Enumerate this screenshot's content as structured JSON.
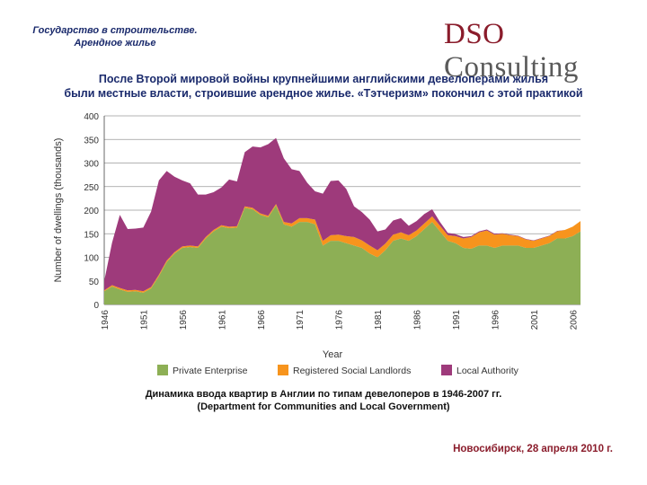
{
  "header": {
    "title_line1": "Государство в строительстве.",
    "title_line2": "Арендное жилье",
    "logo_dso": "DSO",
    "logo_consulting": "Consulting"
  },
  "subtitle": {
    "line1": "После Второй мировой войны крупнейшими английскими девелоперами жилья",
    "line2": "были местные власти, строившие арендное жилье. «Тэтчеризм» покончил с этой практикой"
  },
  "caption": {
    "line1": "Динамика ввода квартир в  Англии по типам девелоперов в 1946-2007 гг.",
    "line2": "(Department for Communities and Local Government)"
  },
  "footer": {
    "text": "Новосибирск, 28 апреля 2010 г."
  },
  "colors": {
    "private": "#8daf55",
    "social": "#f7941d",
    "local": "#9e3a7b"
  },
  "chart_data": {
    "type": "area",
    "stacked": true,
    "xlabel": "Year",
    "ylabel": "Number of dwellings (thousands)",
    "ylim": [
      0,
      400
    ],
    "yticks": [
      0,
      50,
      100,
      150,
      200,
      250,
      300,
      350,
      400
    ],
    "xlim": [
      1946,
      2007
    ],
    "xticks": [
      1946,
      1951,
      1956,
      1961,
      1966,
      1971,
      1976,
      1981,
      1986,
      1991,
      1996,
      2001,
      2006
    ],
    "grid": true,
    "legend_position": "bottom",
    "series": [
      {
        "name": "Private Enterprise",
        "color": "#8daf55",
        "x": [
          1946,
          1947,
          1948,
          1949,
          1950,
          1951,
          1952,
          1953,
          1954,
          1955,
          1956,
          1957,
          1958,
          1959,
          1960,
          1961,
          1962,
          1963,
          1964,
          1965,
          1966,
          1967,
          1968,
          1969,
          1970,
          1971,
          1972,
          1973,
          1974,
          1975,
          1976,
          1977,
          1978,
          1979,
          1980,
          1981,
          1982,
          1983,
          1984,
          1985,
          1986,
          1987,
          1988,
          1989,
          1990,
          1991,
          1992,
          1993,
          1994,
          1995,
          1996,
          1997,
          1998,
          1999,
          2000,
          2001,
          2002,
          2003,
          2004,
          2005,
          2006,
          2007
        ],
        "values": [
          28,
          38,
          32,
          27,
          28,
          25,
          34,
          60,
          90,
          108,
          120,
          122,
          120,
          140,
          155,
          165,
          162,
          163,
          205,
          202,
          190,
          185,
          210,
          170,
          165,
          175,
          175,
          170,
          125,
          135,
          135,
          130,
          125,
          120,
          108,
          100,
          115,
          135,
          140,
          135,
          145,
          160,
          175,
          155,
          135,
          130,
          120,
          118,
          125,
          125,
          120,
          125,
          125,
          125,
          120,
          120,
          125,
          130,
          140,
          140,
          145,
          155
        ]
      },
      {
        "name": "Registered Social Landlords",
        "color": "#f7941d",
        "x": [
          1946,
          1947,
          1948,
          1949,
          1950,
          1951,
          1952,
          1953,
          1954,
          1955,
          1956,
          1957,
          1958,
          1959,
          1960,
          1961,
          1962,
          1963,
          1964,
          1965,
          1966,
          1967,
          1968,
          1969,
          1970,
          1971,
          1972,
          1973,
          1974,
          1975,
          1976,
          1977,
          1978,
          1979,
          1980,
          1981,
          1982,
          1983,
          1984,
          1985,
          1986,
          1987,
          1988,
          1989,
          1990,
          1991,
          1992,
          1993,
          1994,
          1995,
          1996,
          1997,
          1998,
          1999,
          2000,
          2001,
          2002,
          2003,
          2004,
          2005,
          2006,
          2007
        ],
        "values": [
          2,
          3,
          3,
          3,
          3,
          3,
          3,
          3,
          3,
          3,
          3,
          3,
          3,
          3,
          3,
          3,
          3,
          3,
          3,
          3,
          3,
          3,
          3,
          5,
          7,
          8,
          8,
          10,
          10,
          12,
          13,
          15,
          18,
          16,
          17,
          15,
          14,
          13,
          13,
          12,
          12,
          12,
          12,
          12,
          12,
          15,
          20,
          25,
          28,
          32,
          28,
          25,
          22,
          20,
          18,
          15,
          15,
          15,
          15,
          18,
          20,
          22
        ]
      },
      {
        "name": "Local Authority",
        "color": "#9e3a7b",
        "x": [
          1946,
          1947,
          1948,
          1949,
          1950,
          1951,
          1952,
          1953,
          1954,
          1955,
          1956,
          1957,
          1958,
          1959,
          1960,
          1961,
          1962,
          1963,
          1964,
          1965,
          1966,
          1967,
          1968,
          1969,
          1970,
          1971,
          1972,
          1973,
          1974,
          1975,
          1976,
          1977,
          1978,
          1979,
          1980,
          1981,
          1982,
          1983,
          1984,
          1985,
          1986,
          1987,
          1988,
          1989,
          1990,
          1991,
          1992,
          1993,
          1994,
          1995,
          1996,
          1997,
          1998,
          1999,
          2000,
          2001,
          2002,
          2003,
          2004,
          2005,
          2006,
          2007
        ],
        "values": [
          20,
          90,
          155,
          130,
          130,
          135,
          160,
          200,
          190,
          160,
          140,
          132,
          110,
          90,
          80,
          80,
          100,
          95,
          115,
          130,
          140,
          152,
          140,
          135,
          115,
          100,
          75,
          60,
          100,
          115,
          115,
          100,
          65,
          60,
          55,
          40,
          30,
          30,
          30,
          20,
          20,
          20,
          15,
          8,
          5,
          4,
          3,
          2,
          2,
          2,
          2,
          1,
          1,
          1,
          1,
          1,
          1,
          1,
          1,
          0,
          0,
          0
        ]
      }
    ]
  }
}
